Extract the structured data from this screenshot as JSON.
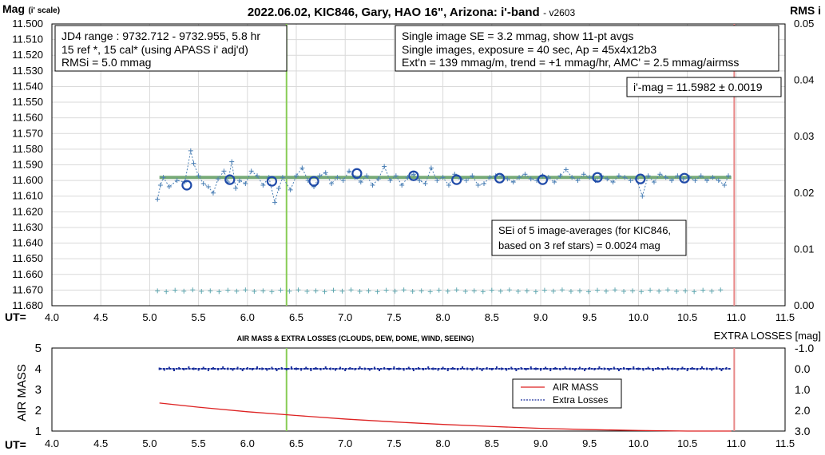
{
  "chart_data": [
    {
      "type": "scatter",
      "title": "2022.06.02, KIC846, Gary, HAO 16\", Arizona: i'-band",
      "version": "- v2603",
      "ylabel_main": "Mag",
      "ylabel_sub": "(i' scale)",
      "y2label": "RMS i",
      "xlabel": "UT=",
      "xlim": [
        4.0,
        11.5
      ],
      "ylim": [
        11.5,
        11.68
      ],
      "y2lim": [
        0.0,
        0.05
      ],
      "x_ticks": [
        "4.0",
        "4.5",
        "5.0",
        "5.5",
        "6.0",
        "6.5",
        "7.0",
        "7.5",
        "8.0",
        "8.5",
        "9.0",
        "9.5",
        "10.0",
        "10.5",
        "11.0",
        "11.5"
      ],
      "y_ticks": [
        "11.500",
        "11.510",
        "11.520",
        "11.530",
        "11.540",
        "11.550",
        "11.560",
        "11.570",
        "11.580",
        "11.590",
        "11.600",
        "11.610",
        "11.620",
        "11.630",
        "11.640",
        "11.650",
        "11.660",
        "11.670",
        "11.680"
      ],
      "y2_ticks": [
        "0.05",
        "0.04",
        "0.03",
        "0.02",
        "0.01",
        "0.00"
      ],
      "grid": true,
      "vlines": [
        {
          "x": 6.4,
          "color": "#88cc55"
        },
        {
          "x": 10.98,
          "color": "#e88888"
        }
      ],
      "fit_line": {
        "x": [
          5.1,
          10.95
        ],
        "y": 11.598,
        "color": "#77aa77"
      },
      "box_left": [
        "JD4 range : 9732.712 - 9732.955, 5.8  hr",
        "15 ref *, 15 cal* (using APASS i' adj'd)",
        "RMSi = 5.0 mmag"
      ],
      "box_right": [
        "Single image SE = 3.2 mmag, show 11-pt avgs",
        "Single images, exposure = 40 sec, Ap = 45x4x12b3",
        "Ext'n = 139 mmag/m, trend = +1 mmag/hr, AMC' = 2.5 mmag/airmss"
      ],
      "mag_box": "i'-mag = 11.5982 ± 0.0019",
      "se_box": [
        "SEi of 5 image-averages (for KIC846,",
        "based on 3 ref stars) = 0.0024 mag"
      ],
      "averages": {
        "name": "11-pt avgs",
        "x": [
          5.38,
          5.82,
          6.25,
          6.68,
          7.12,
          7.7,
          8.14,
          8.58,
          9.02,
          9.58,
          10.02,
          10.47
        ],
        "y": [
          11.603,
          11.5995,
          11.6005,
          11.6005,
          11.5955,
          11.597,
          11.5995,
          11.5985,
          11.5995,
          11.598,
          11.599,
          11.5985
        ],
        "color": "#1f4aa8"
      },
      "single": {
        "name": "single images",
        "x": [
          5.08,
          5.11,
          5.14,
          5.2,
          5.28,
          5.36,
          5.42,
          5.45,
          5.5,
          5.55,
          5.6,
          5.65,
          5.7,
          5.76,
          5.8,
          5.84,
          5.88,
          5.92,
          5.98,
          6.04,
          6.1,
          6.16,
          6.22,
          6.28,
          6.32,
          6.36,
          6.44,
          6.5,
          6.56,
          6.62,
          6.68,
          6.74,
          6.8,
          6.86,
          6.92,
          6.98,
          7.04,
          7.1,
          7.16,
          7.22,
          7.28,
          7.34,
          7.4,
          7.46,
          7.52,
          7.58,
          7.64,
          7.7,
          7.76,
          7.82,
          7.88,
          7.94,
          8.0,
          8.06,
          8.12,
          8.18,
          8.24,
          8.3,
          8.36,
          8.42,
          8.48,
          8.54,
          8.6,
          8.66,
          8.72,
          8.78,
          8.84,
          8.9,
          8.96,
          9.02,
          9.08,
          9.14,
          9.2,
          9.26,
          9.32,
          9.38,
          9.44,
          9.5,
          9.56,
          9.62,
          9.68,
          9.74,
          9.8,
          9.86,
          9.92,
          9.98,
          10.04,
          10.1,
          10.16,
          10.22,
          10.28,
          10.34,
          10.4,
          10.46,
          10.52,
          10.58,
          10.64,
          10.7,
          10.76,
          10.82,
          10.88,
          10.92
        ],
        "y": [
          11.612,
          11.603,
          11.598,
          11.604,
          11.6,
          11.601,
          11.581,
          11.589,
          11.597,
          11.602,
          11.604,
          11.608,
          11.599,
          11.594,
          11.601,
          11.588,
          11.605,
          11.6,
          11.602,
          11.594,
          11.597,
          11.603,
          11.598,
          11.614,
          11.605,
          11.598,
          11.606,
          11.597,
          11.592,
          11.6,
          11.604,
          11.597,
          11.595,
          11.602,
          11.598,
          11.6,
          11.594,
          11.598,
          11.601,
          11.597,
          11.603,
          11.599,
          11.591,
          11.6,
          11.597,
          11.603,
          11.598,
          11.596,
          11.6,
          11.602,
          11.592,
          11.6,
          11.598,
          11.603,
          11.596,
          11.599,
          11.6,
          11.597,
          11.603,
          11.602,
          11.598,
          11.597,
          11.597,
          11.599,
          11.601,
          11.598,
          11.596,
          11.599,
          11.6,
          11.597,
          11.598,
          11.601,
          11.597,
          11.593,
          11.598,
          11.6,
          11.596,
          11.598,
          11.6,
          11.597,
          11.599,
          11.601,
          11.597,
          11.598,
          11.6,
          11.599,
          11.61,
          11.597,
          11.601,
          11.596,
          11.598,
          11.6,
          11.597,
          11.599,
          11.598,
          11.6,
          11.597,
          11.6,
          11.598,
          11.6,
          11.603,
          11.597
        ],
        "color": "#4a7fb5"
      },
      "rms": {
        "name": "RMS i",
        "y_const": 11.6705,
        "x_start": 5.08,
        "x_end": 10.9,
        "x_step": 0.09,
        "color": "#5fa7b0"
      }
    },
    {
      "type": "line",
      "title": "AIR MASS & EXTRA LOSSES (CLOUDS, DEW, DOME, WIND, SEEING)",
      "ylabel": "AIR MASS",
      "y2label": "EXTRA LOSSES [mag]",
      "xlabel": "UT=",
      "xlim": [
        4.0,
        11.5
      ],
      "ylim": [
        1,
        5
      ],
      "y2lim": [
        -1.0,
        3.0
      ],
      "x_ticks": [
        "4.0",
        "4.5",
        "5.0",
        "5.5",
        "6.0",
        "6.5",
        "7.0",
        "7.5",
        "8.0",
        "8.5",
        "9.0",
        "9.5",
        "10.0",
        "10.5",
        "11.0",
        "11.5"
      ],
      "y_ticks": [
        "5",
        "4",
        "3",
        "2",
        "1"
      ],
      "y2_ticks": [
        "-1.0",
        "0.0",
        "1.0",
        "2.0",
        "3.0"
      ],
      "vlines": [
        {
          "x": 6.4,
          "color": "#88cc55"
        },
        {
          "x": 10.98,
          "color": "#e88888"
        }
      ],
      "legend": [
        "AIR MASS",
        "Extra Losses"
      ],
      "series": [
        {
          "name": "AIR MASS",
          "x": [
            5.1,
            5.5,
            6.0,
            6.5,
            7.0,
            7.5,
            8.0,
            8.5,
            9.0,
            9.5,
            10.0,
            10.5,
            10.95
          ],
          "y": [
            2.35,
            2.15,
            1.93,
            1.75,
            1.58,
            1.44,
            1.32,
            1.22,
            1.13,
            1.07,
            1.03,
            1.0,
            1.0
          ],
          "color": "#dd2222"
        },
        {
          "name": "Extra Losses",
          "x_start": 5.1,
          "x_end": 10.95,
          "y": 0.0,
          "color": "#1a2f9c"
        }
      ]
    }
  ]
}
